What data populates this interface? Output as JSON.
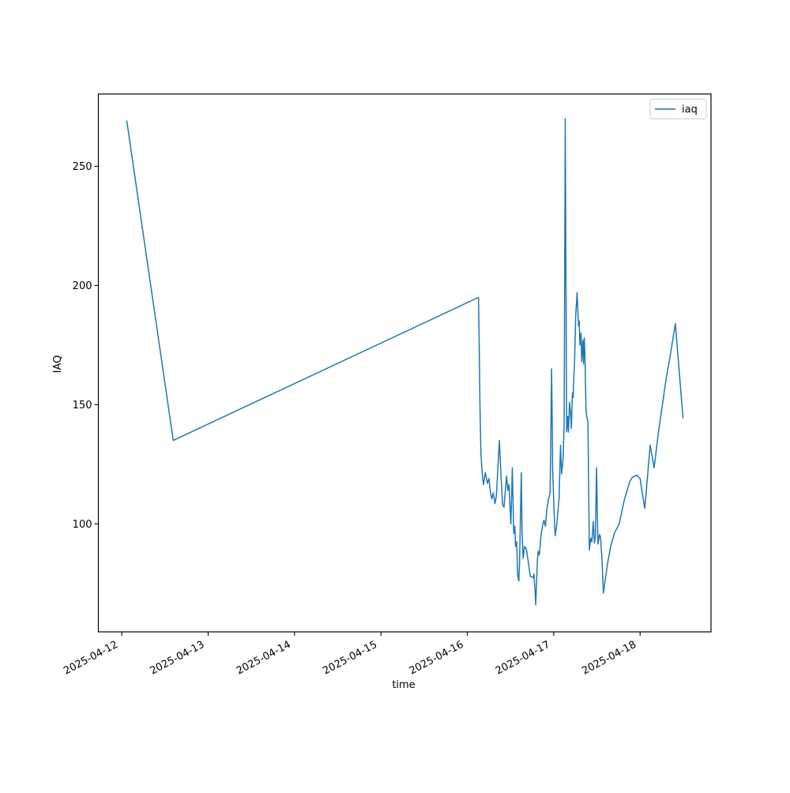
{
  "window": {
    "background": "#ffffff"
  },
  "chart_data": {
    "type": "line",
    "title": "",
    "xlabel": "time",
    "ylabel": "IAQ",
    "grid": false,
    "legend": {
      "label": "iaq",
      "position": "upper right"
    },
    "x_axis": {
      "unit": "hours since 2025-04-12 00:00",
      "tick_hours": [
        0,
        24,
        48,
        72,
        96,
        120,
        144
      ],
      "tick_labels": [
        "2025-04-12",
        "2025-04-13",
        "2025-04-14",
        "2025-04-15",
        "2025-04-16",
        "2025-04-17",
        "2025-04-18"
      ],
      "lim_hours": [
        -6.5,
        163.7
      ],
      "tick_rotation_deg": 28
    },
    "y_axis": {
      "ticks": [
        100,
        150,
        200,
        250
      ],
      "lim": [
        54.7,
        280.3
      ]
    },
    "series": [
      {
        "name": "iaq",
        "color": "#1f77b4",
        "line_width": 1.5,
        "points": [
          [
            1.4,
            269
          ],
          [
            14.3,
            135
          ],
          [
            99.1,
            195
          ],
          [
            99.3,
            175
          ],
          [
            99.5,
            150
          ],
          [
            99.8,
            129
          ],
          [
            100.2,
            120
          ],
          [
            100.5,
            116.5
          ],
          [
            101.0,
            121.5
          ],
          [
            101.6,
            117
          ],
          [
            102.0,
            119
          ],
          [
            102.5,
            112.5
          ],
          [
            102.8,
            110.5
          ],
          [
            103.2,
            113
          ],
          [
            103.7,
            108.5
          ],
          [
            104.1,
            112
          ],
          [
            104.9,
            135
          ],
          [
            105.4,
            119
          ],
          [
            105.6,
            113
          ],
          [
            105.8,
            108
          ],
          [
            106.2,
            107
          ],
          [
            106.9,
            120
          ],
          [
            107.3,
            114
          ],
          [
            107.6,
            116.5
          ],
          [
            107.8,
            109
          ],
          [
            108.1,
            100
          ],
          [
            108.5,
            123.5
          ],
          [
            108.9,
            96
          ],
          [
            109.2,
            99
          ],
          [
            109.4,
            90.5
          ],
          [
            109.7,
            92.5
          ],
          [
            110.0,
            78.5
          ],
          [
            110.3,
            76
          ],
          [
            110.5,
            83
          ],
          [
            111.0,
            121.5
          ],
          [
            111.2,
            97
          ],
          [
            111.5,
            85.5
          ],
          [
            111.9,
            90.5
          ],
          [
            112.4,
            89.5
          ],
          [
            112.9,
            84.5
          ],
          [
            113.5,
            78
          ],
          [
            114.3,
            77.5
          ],
          [
            114.5,
            79
          ],
          [
            114.9,
            70
          ],
          [
            115.0,
            66
          ],
          [
            115.3,
            78
          ],
          [
            115.5,
            85.5
          ],
          [
            115.7,
            88.5
          ],
          [
            116.0,
            87
          ],
          [
            116.5,
            95.5
          ],
          [
            117.0,
            100
          ],
          [
            117.3,
            101.5
          ],
          [
            117.7,
            99
          ],
          [
            118.1,
            106
          ],
          [
            118.5,
            110
          ],
          [
            119.0,
            113
          ],
          [
            119.2,
            135
          ],
          [
            119.4,
            165
          ],
          [
            119.6,
            140
          ],
          [
            119.7,
            123
          ],
          [
            120.1,
            106
          ],
          [
            120.4,
            95
          ],
          [
            120.8,
            99
          ],
          [
            121.1,
            104
          ],
          [
            121.5,
            111
          ],
          [
            121.9,
            133
          ],
          [
            122.2,
            121
          ],
          [
            122.6,
            127
          ],
          [
            122.9,
            142
          ],
          [
            123.2,
            270
          ],
          [
            123.6,
            138.5
          ],
          [
            123.9,
            145
          ],
          [
            124.1,
            138.5
          ],
          [
            124.4,
            151
          ],
          [
            124.7,
            146
          ],
          [
            124.9,
            140
          ],
          [
            125.2,
            155
          ],
          [
            125.4,
            153
          ],
          [
            125.6,
            162
          ],
          [
            125.8,
            168
          ],
          [
            126.1,
            187
          ],
          [
            126.5,
            197
          ],
          [
            126.7,
            190
          ],
          [
            126.9,
            183
          ],
          [
            127.1,
            185
          ],
          [
            127.3,
            175
          ],
          [
            127.6,
            180
          ],
          [
            127.8,
            168
          ],
          [
            128.1,
            177
          ],
          [
            128.3,
            167
          ],
          [
            128.5,
            178
          ],
          [
            128.7,
            170
          ],
          [
            128.9,
            154
          ],
          [
            129.0,
            147
          ],
          [
            129.3,
            144
          ],
          [
            129.5,
            143
          ],
          [
            129.9,
            89
          ],
          [
            130.3,
            94
          ],
          [
            130.6,
            92.5
          ],
          [
            131.0,
            101
          ],
          [
            131.3,
            92
          ],
          [
            131.6,
            95
          ],
          [
            131.9,
            123.5
          ],
          [
            132.3,
            91.5
          ],
          [
            132.7,
            95.5
          ],
          [
            133.0,
            94.5
          ],
          [
            133.4,
            85.5
          ],
          [
            133.8,
            71
          ],
          [
            134.9,
            83
          ],
          [
            135.9,
            91
          ],
          [
            137.0,
            96.5
          ],
          [
            138.2,
            100
          ],
          [
            139.6,
            110
          ],
          [
            141.1,
            117.5
          ],
          [
            141.8,
            119.5
          ],
          [
            143.1,
            120.5
          ],
          [
            144.0,
            119
          ],
          [
            144.7,
            112
          ],
          [
            145.3,
            106.5
          ],
          [
            146.8,
            133
          ],
          [
            147.9,
            123.5
          ],
          [
            149.1,
            138.5
          ],
          [
            151.3,
            161.5
          ],
          [
            152.3,
            170
          ],
          [
            153.8,
            184
          ],
          [
            155.9,
            144.5
          ]
        ]
      }
    ]
  }
}
